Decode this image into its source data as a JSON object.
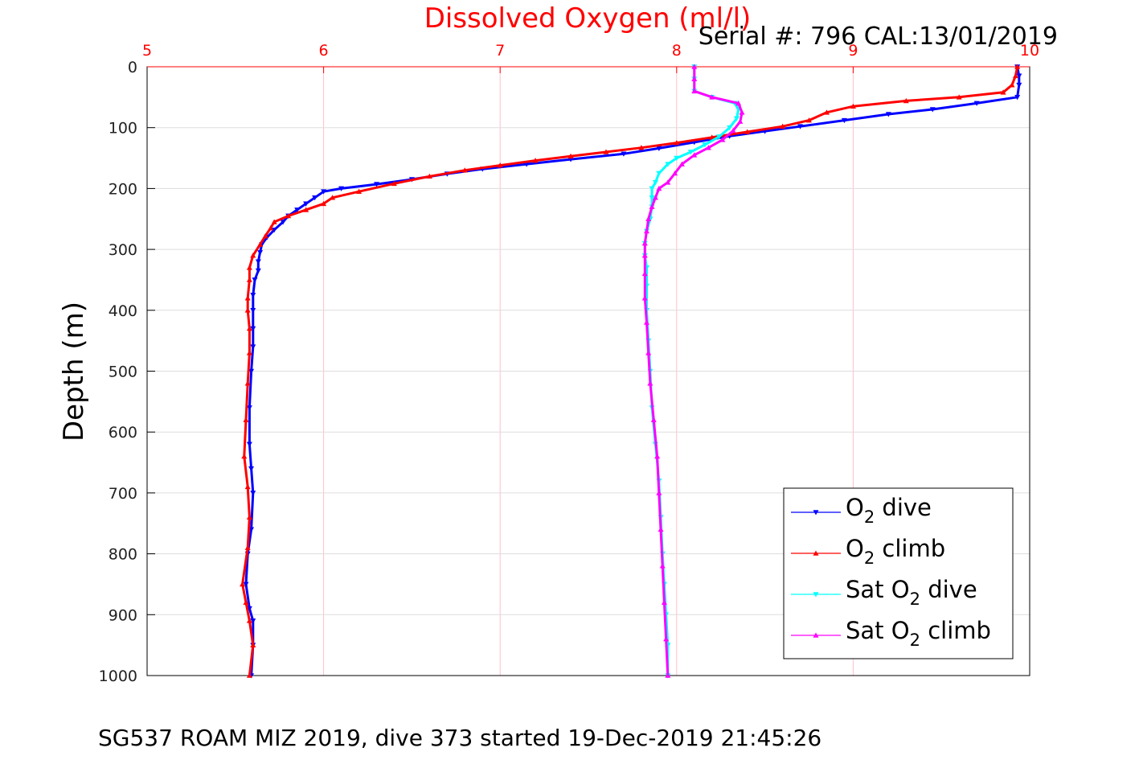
{
  "chart_data": {
    "type": "line",
    "title": "Dissolved Oxygen (ml/l)",
    "serial": "Serial #: 796  CAL:13/01/2019",
    "footer": "SG537 ROAM MIZ 2019, dive 373 started 19-Dec-2019 21:45:26",
    "ylabel": "Depth (m)",
    "xlim": [
      5,
      10
    ],
    "ylim": [
      0,
      1000
    ],
    "y_reversed": true,
    "x_axis_position": "top",
    "grid": true,
    "legend_placement": "bottom-right",
    "x_ticks": [
      "5",
      "6",
      "7",
      "8",
      "9",
      "10"
    ],
    "y_ticks": [
      "0",
      "100",
      "200",
      "300",
      "400",
      "500",
      "600",
      "700",
      "800",
      "900",
      "1000"
    ],
    "colors": {
      "title": "#ff0000",
      "tick_x": "#ff0000",
      "grid_x": "#ffc0cb",
      "grid_y": "#dddddd"
    },
    "series": [
      {
        "name_main": "O",
        "name_sub": "2",
        "name_rest": " dive",
        "color": "#0000ff",
        "marker": "triangle-down",
        "points": [
          [
            9.93,
            0
          ],
          [
            9.94,
            15
          ],
          [
            9.94,
            30
          ],
          [
            9.93,
            50
          ],
          [
            9.7,
            60
          ],
          [
            9.45,
            70
          ],
          [
            9.2,
            78
          ],
          [
            8.95,
            88
          ],
          [
            8.7,
            98
          ],
          [
            8.5,
            106
          ],
          [
            8.3,
            114
          ],
          [
            8.1,
            124
          ],
          [
            7.9,
            134
          ],
          [
            7.7,
            143
          ],
          [
            7.4,
            152
          ],
          [
            7.15,
            160
          ],
          [
            6.9,
            168
          ],
          [
            6.7,
            176
          ],
          [
            6.5,
            185
          ],
          [
            6.3,
            193
          ],
          [
            6.1,
            200
          ],
          [
            6.0,
            205
          ],
          [
            5.95,
            215
          ],
          [
            5.9,
            225
          ],
          [
            5.85,
            235
          ],
          [
            5.8,
            245
          ],
          [
            5.77,
            255
          ],
          [
            5.72,
            268
          ],
          [
            5.68,
            280
          ],
          [
            5.65,
            292
          ],
          [
            5.64,
            305
          ],
          [
            5.63,
            320
          ],
          [
            5.63,
            335
          ],
          [
            5.61,
            350
          ],
          [
            5.6,
            375
          ],
          [
            5.6,
            400
          ],
          [
            5.6,
            430
          ],
          [
            5.6,
            460
          ],
          [
            5.59,
            500
          ],
          [
            5.58,
            560
          ],
          [
            5.58,
            620
          ],
          [
            5.59,
            660
          ],
          [
            5.6,
            700
          ],
          [
            5.59,
            760
          ],
          [
            5.57,
            800
          ],
          [
            5.56,
            850
          ],
          [
            5.58,
            890
          ],
          [
            5.6,
            910
          ],
          [
            5.6,
            950
          ],
          [
            5.59,
            1000
          ]
        ]
      },
      {
        "name_main": "O",
        "name_sub": "2",
        "name_rest": " climb",
        "color": "#ff0000",
        "marker": "triangle-up",
        "points": [
          [
            9.93,
            0
          ],
          [
            9.92,
            15
          ],
          [
            9.9,
            30
          ],
          [
            9.85,
            42
          ],
          [
            9.6,
            50
          ],
          [
            9.3,
            56
          ],
          [
            9.0,
            65
          ],
          [
            8.85,
            75
          ],
          [
            8.75,
            88
          ],
          [
            8.6,
            98
          ],
          [
            8.4,
            107
          ],
          [
            8.2,
            116
          ],
          [
            8.0,
            125
          ],
          [
            7.8,
            133
          ],
          [
            7.6,
            140
          ],
          [
            7.4,
            147
          ],
          [
            7.2,
            154
          ],
          [
            7.0,
            162
          ],
          [
            6.8,
            170
          ],
          [
            6.6,
            180
          ],
          [
            6.4,
            192
          ],
          [
            6.2,
            205
          ],
          [
            6.05,
            215
          ],
          [
            6.0,
            225
          ],
          [
            5.9,
            235
          ],
          [
            5.8,
            245
          ],
          [
            5.72,
            255
          ],
          [
            5.7,
            265
          ],
          [
            5.67,
            278
          ],
          [
            5.64,
            292
          ],
          [
            5.6,
            310
          ],
          [
            5.58,
            330
          ],
          [
            5.58,
            350
          ],
          [
            5.57,
            380
          ],
          [
            5.57,
            400
          ],
          [
            5.58,
            430
          ],
          [
            5.58,
            470
          ],
          [
            5.57,
            520
          ],
          [
            5.56,
            580
          ],
          [
            5.55,
            640
          ],
          [
            5.57,
            690
          ],
          [
            5.58,
            740
          ],
          [
            5.57,
            790
          ],
          [
            5.54,
            850
          ],
          [
            5.56,
            880
          ],
          [
            5.58,
            910
          ],
          [
            5.6,
            950
          ],
          [
            5.58,
            1000
          ]
        ]
      },
      {
        "name_main": "Sat O",
        "name_sub": "2",
        "name_rest": " dive",
        "color": "#00ffff",
        "marker": "triangle-down",
        "points": [
          [
            8.1,
            0
          ],
          [
            8.1,
            20
          ],
          [
            8.1,
            40
          ],
          [
            8.2,
            50
          ],
          [
            8.33,
            60
          ],
          [
            8.35,
            70
          ],
          [
            8.34,
            85
          ],
          [
            8.3,
            100
          ],
          [
            8.24,
            115
          ],
          [
            8.16,
            128
          ],
          [
            8.08,
            140
          ],
          [
            8.0,
            150
          ],
          [
            7.95,
            160
          ],
          [
            7.9,
            175
          ],
          [
            7.88,
            190
          ],
          [
            7.86,
            200
          ],
          [
            7.86,
            215
          ],
          [
            7.86,
            230
          ],
          [
            7.85,
            250
          ],
          [
            7.83,
            270
          ],
          [
            7.82,
            290
          ],
          [
            7.82,
            310
          ],
          [
            7.83,
            330
          ],
          [
            7.83,
            360
          ],
          [
            7.83,
            400
          ],
          [
            7.84,
            450
          ],
          [
            7.85,
            500
          ],
          [
            7.86,
            560
          ],
          [
            7.88,
            620
          ],
          [
            7.9,
            680
          ],
          [
            7.91,
            740
          ],
          [
            7.92,
            800
          ],
          [
            7.93,
            850
          ],
          [
            7.94,
            900
          ],
          [
            7.95,
            950
          ],
          [
            7.95,
            1000
          ]
        ]
      },
      {
        "name_main": "Sat O",
        "name_sub": "2",
        "name_rest": " climb",
        "color": "#ff00ff",
        "marker": "triangle-up",
        "points": [
          [
            8.1,
            0
          ],
          [
            8.1,
            20
          ],
          [
            8.1,
            40
          ],
          [
            8.2,
            50
          ],
          [
            8.35,
            60
          ],
          [
            8.37,
            75
          ],
          [
            8.36,
            90
          ],
          [
            8.32,
            105
          ],
          [
            8.26,
            120
          ],
          [
            8.18,
            133
          ],
          [
            8.1,
            145
          ],
          [
            8.03,
            160
          ],
          [
            7.99,
            175
          ],
          [
            7.95,
            190
          ],
          [
            7.9,
            200
          ],
          [
            7.88,
            215
          ],
          [
            7.86,
            230
          ],
          [
            7.84,
            250
          ],
          [
            7.83,
            270
          ],
          [
            7.82,
            290
          ],
          [
            7.82,
            310
          ],
          [
            7.82,
            340
          ],
          [
            7.82,
            380
          ],
          [
            7.83,
            420
          ],
          [
            7.84,
            470
          ],
          [
            7.85,
            520
          ],
          [
            7.87,
            580
          ],
          [
            7.89,
            640
          ],
          [
            7.9,
            700
          ],
          [
            7.91,
            760
          ],
          [
            7.92,
            820
          ],
          [
            7.93,
            880
          ],
          [
            7.94,
            940
          ],
          [
            7.95,
            1000
          ]
        ]
      }
    ]
  }
}
